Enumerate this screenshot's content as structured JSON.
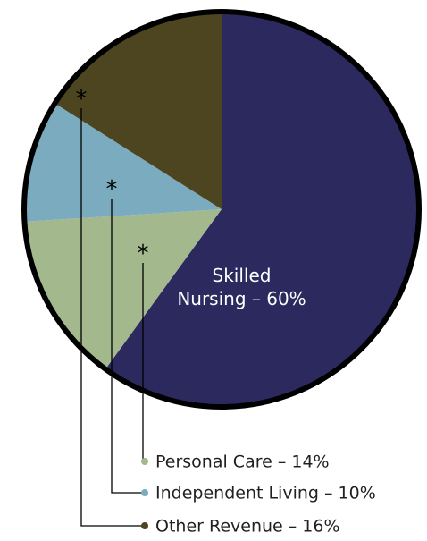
{
  "chart_data": {
    "type": "pie",
    "values": [
      60,
      14,
      10,
      16
    ],
    "value_labels": [
      "Skilled Nursing – 60%",
      "Personal Care – 14%",
      "Independent Living – 10%",
      "Other Revenue – 16%"
    ],
    "colors": [
      "#2b295e",
      "#a3b88c",
      "#7aabbf",
      "#4d4420"
    ]
  }
}
